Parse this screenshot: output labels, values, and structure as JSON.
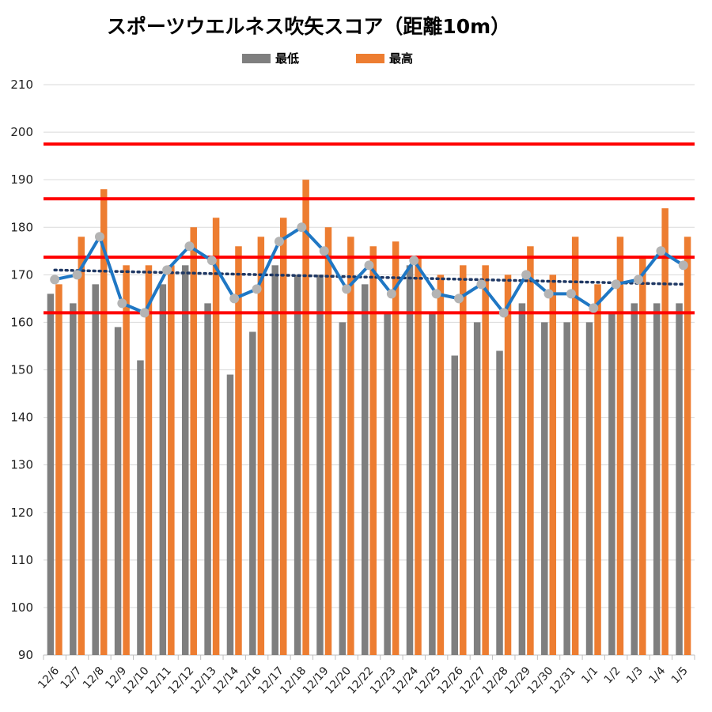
{
  "chart_data": {
    "type": "bar",
    "title": "スポーツウエルネス吹矢スコア（距離10m）",
    "xlabel": "",
    "ylabel": "",
    "ylim": [
      90,
      210
    ],
    "yticks": [
      90,
      100,
      110,
      120,
      130,
      140,
      150,
      160,
      170,
      180,
      190,
      200,
      210
    ],
    "grid": true,
    "legend_position": "top",
    "categories": [
      "12/6",
      "12/7",
      "12/8",
      "12/9",
      "12/10",
      "12/11",
      "12/12",
      "12/13",
      "12/14",
      "12/16",
      "12/17",
      "12/18",
      "12/19",
      "12/20",
      "12/22",
      "12/23",
      "12/24",
      "12/25",
      "12/26",
      "12/27",
      "12/28",
      "12/29",
      "12/30",
      "12/31",
      "1/1",
      "1/2",
      "1/3",
      "1/4",
      "1/5"
    ],
    "series": [
      {
        "name": "最低",
        "kind": "bar",
        "color": "#7f7f7f",
        "values": [
          166,
          164,
          168,
          159,
          152,
          168,
          172,
          164,
          149,
          158,
          172,
          170,
          170,
          160,
          168,
          162,
          172,
          162,
          153,
          160,
          154,
          164,
          160,
          160,
          160,
          162,
          164,
          164,
          164
        ]
      },
      {
        "name": "最高",
        "kind": "bar",
        "color": "#ed7d31",
        "values": [
          168,
          178,
          188,
          172,
          172,
          172,
          180,
          182,
          176,
          178,
          182,
          190,
          180,
          178,
          176,
          177,
          174,
          170,
          172,
          172,
          170,
          176,
          170,
          178,
          168,
          178,
          174,
          184,
          178
        ]
      },
      {
        "name": "",
        "kind": "line",
        "color": "#1f77c4",
        "marker_color": "#b4b4b4",
        "values": [
          169,
          170,
          178,
          164,
          162,
          171,
          176,
          173,
          165,
          167,
          177,
          180,
          175,
          167,
          172,
          166,
          173,
          166,
          165,
          168,
          162,
          170,
          166,
          166,
          163,
          168,
          169,
          175,
          172
        ]
      },
      {
        "name": "",
        "kind": "trendline",
        "style": "dotted",
        "color": "#1f3864",
        "start": 171,
        "end": 168
      }
    ],
    "reference_lines": [
      {
        "value": 197.5,
        "color": "#ff0000"
      },
      {
        "value": 186,
        "color": "#ff0000"
      },
      {
        "value": 173.7,
        "color": "#ff0000"
      },
      {
        "value": 162,
        "color": "#ff0000"
      }
    ]
  }
}
